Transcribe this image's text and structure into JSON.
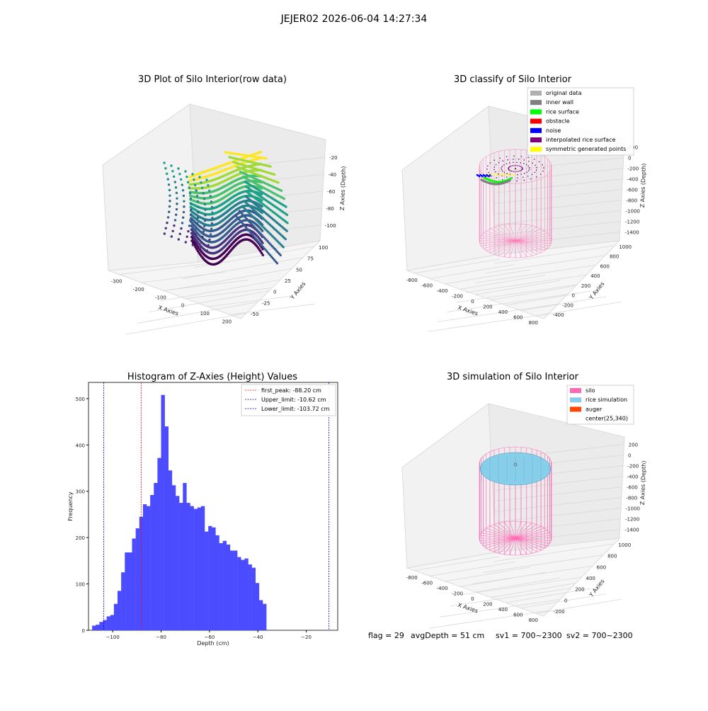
{
  "figure": {
    "suptitle": "JEJER02 2026-06-04 14:27:34",
    "status_line": {
      "flag": "flag = 29",
      "avg_depth": "avgDepth = 51 cm",
      "sv1": "sv1 = 700~2300",
      "sv2": "sv2 = 700~2300"
    }
  },
  "plot_raw": {
    "title": "3D Plot of Silo Interior(row data)",
    "xlabel": "X Axies",
    "ylabel": "Y Axies",
    "zlabel": "Z Axies (Depth)",
    "x_ticks": [
      "-300",
      "-200",
      "-100",
      "0",
      "100",
      "200"
    ],
    "y_ticks": [
      "-50",
      "-25",
      "0",
      "25",
      "50",
      "75",
      "100"
    ],
    "z_ticks": [
      "-20",
      "-40",
      "-60",
      "-80",
      "-100"
    ]
  },
  "plot_classify": {
    "title": "3D classify of Silo Interior",
    "xlabel": "X Axies",
    "ylabel": "Y Axies",
    "zlabel": "Z Axies (Depth)",
    "x_ticks": [
      "-800",
      "-600",
      "-400",
      "-200",
      "0",
      "200",
      "400",
      "600",
      "800"
    ],
    "y_ticks": [
      "-400",
      "-200",
      "0",
      "200",
      "400",
      "600",
      "800",
      "1000"
    ],
    "z_ticks": [
      "200",
      "0",
      "-200",
      "-400",
      "-600",
      "-800",
      "-1000",
      "-1200",
      "-1400"
    ],
    "legend": [
      {
        "label": "original data",
        "color": "#b0b0b0"
      },
      {
        "label": "inner wall",
        "color": "#808080"
      },
      {
        "label": "rice surface",
        "color": "#00ff00"
      },
      {
        "label": "obstacle",
        "color": "#ff0000"
      },
      {
        "label": "noise",
        "color": "#0000ff"
      },
      {
        "label": "interpolated rice surface",
        "color": "#800080"
      },
      {
        "label": "symmetric generated points",
        "color": "#ffff00"
      }
    ]
  },
  "plot_sim": {
    "title": "3D simulation of Silo Interior",
    "xlabel": "X Axies",
    "ylabel": "Y Axies",
    "zlabel": "Z Axies (Depth)",
    "x_ticks": [
      "-800",
      "-600",
      "-400",
      "-200",
      "0",
      "200",
      "400",
      "600",
      "800"
    ],
    "y_ticks": [
      "-200",
      "0",
      "200",
      "400",
      "600",
      "800",
      "1000"
    ],
    "z_ticks": [
      "200",
      "0",
      "-200",
      "-400",
      "-600",
      "-800",
      "-1000",
      "-1200",
      "-1400"
    ],
    "legend": [
      {
        "label": "silo",
        "color": "#ff69b4"
      },
      {
        "label": "rice simulation",
        "color": "#87ceeb"
      },
      {
        "label": "auger",
        "color": "#ff4500"
      },
      {
        "label": "center(25,340)",
        "color": "#ffffff"
      }
    ]
  },
  "chart_data": {
    "type": "bar",
    "title": "Histogram of Z-Axies (Height) Values",
    "xlabel": "Depth (cm)",
    "ylabel": "Frequency",
    "xlim": [
      -110,
      -7
    ],
    "ylim": [
      0,
      535
    ],
    "x_ticks": [
      -100,
      -80,
      -60,
      -40,
      -20
    ],
    "y_ticks": [
      0,
      100,
      200,
      300,
      400,
      500
    ],
    "bin_start": -108.5,
    "bin_width": 1.5,
    "bar_color": "#4b4bff",
    "values": [
      10,
      12,
      18,
      22,
      30,
      33,
      57,
      85,
      125,
      168,
      168,
      198,
      220,
      245,
      272,
      268,
      292,
      318,
      372,
      508,
      440,
      345,
      313,
      290,
      275,
      318,
      275,
      268,
      262,
      265,
      268,
      213,
      225,
      222,
      205,
      188,
      193,
      185,
      172,
      172,
      158,
      152,
      155,
      142,
      135,
      102,
      65,
      57
    ],
    "vlines": [
      {
        "label": "first_peak: -88.20 cm",
        "x": -88.2,
        "color": "#ff0000"
      },
      {
        "label": "Upper_limit: -10.62 cm",
        "x": -10.62,
        "color": "#0000aa"
      },
      {
        "label": "Lower_limit: -103.72 cm",
        "x": -103.72,
        "color": "#0000aa"
      }
    ]
  }
}
